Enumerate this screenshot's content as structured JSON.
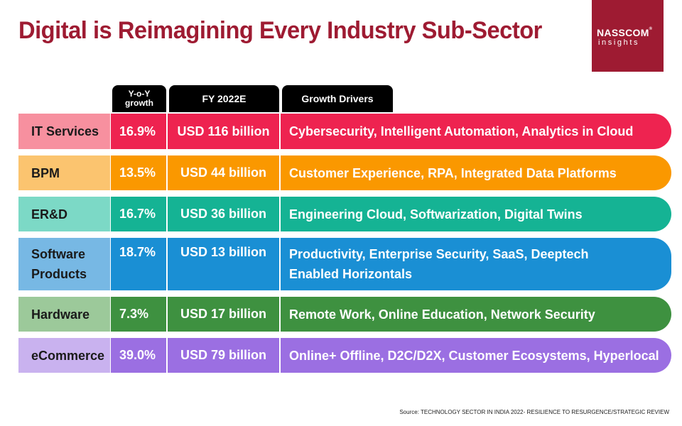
{
  "title": "Digital is Reimagining Every Industry Sub-Sector",
  "logo": {
    "main": "NASSCOM",
    "reg": "®",
    "sub": "insights"
  },
  "headers": {
    "yoy_line1": "Y-o-Y",
    "yoy_line2": "growth",
    "fy": "FY 2022E",
    "drivers": "Growth Drivers"
  },
  "rows": [
    {
      "name_line1": "IT Services",
      "name_line2": "",
      "yoy": "16.9%",
      "fy": "USD 116 billion",
      "drivers_line1": "Cybersecurity, Intelligent Automation,  Analytics in Cloud",
      "drivers_line2": "",
      "colors": {
        "light": "#f7909f",
        "dark": "#ee2350"
      }
    },
    {
      "name_line1": "BPM",
      "name_line2": "",
      "yoy": "13.5%",
      "fy": "USD 44 billion",
      "drivers_line1": "Customer Experience, RPA,  Integrated Data Platforms",
      "drivers_line2": "",
      "colors": {
        "light": "#fbc46f",
        "dark": "#fa9800"
      }
    },
    {
      "name_line1": "ER&D",
      "name_line2": "",
      "yoy": "16.7%",
      "fy": "USD 36 billion",
      "drivers_line1": "Engineering Cloud, Softwarization, Digital Twins",
      "drivers_line2": "",
      "colors": {
        "light": "#7cd9c6",
        "dark": "#15b394"
      }
    },
    {
      "name_line1": "Software",
      "name_line2": "Products",
      "yoy": "18.7%",
      "fy": "USD 13 billion",
      "drivers_line1": "Productivity, Enterprise Security, SaaS, Deeptech",
      "drivers_line2": "Enabled Horizontals",
      "colors": {
        "light": "#77b8e4",
        "dark": "#1a8fd4"
      }
    },
    {
      "name_line1": "Hardware",
      "name_line2": "",
      "yoy": "7.3%",
      "fy": "USD 17 billion",
      "drivers_line1": "Remote Work, Online Education, Network Security",
      "drivers_line2": "",
      "colors": {
        "light": "#9cc99a",
        "dark": "#3e9140"
      }
    },
    {
      "name_line1": "eCommerce",
      "name_line2": "",
      "yoy": "39.0%",
      "fy": "USD 79 billion",
      "drivers_line1": "Online+ Offline, D2C/D2X, Customer Ecosystems, Hyperlocal",
      "drivers_line2": "",
      "colors": {
        "light": "#c9b2ef",
        "dark": "#9b6fe2"
      }
    }
  ],
  "source": "Source: TECHNOLOGY SECTOR IN INDIA 2022- RESILIENCE TO RESURGENCE/STRATEGIC REVIEW"
}
